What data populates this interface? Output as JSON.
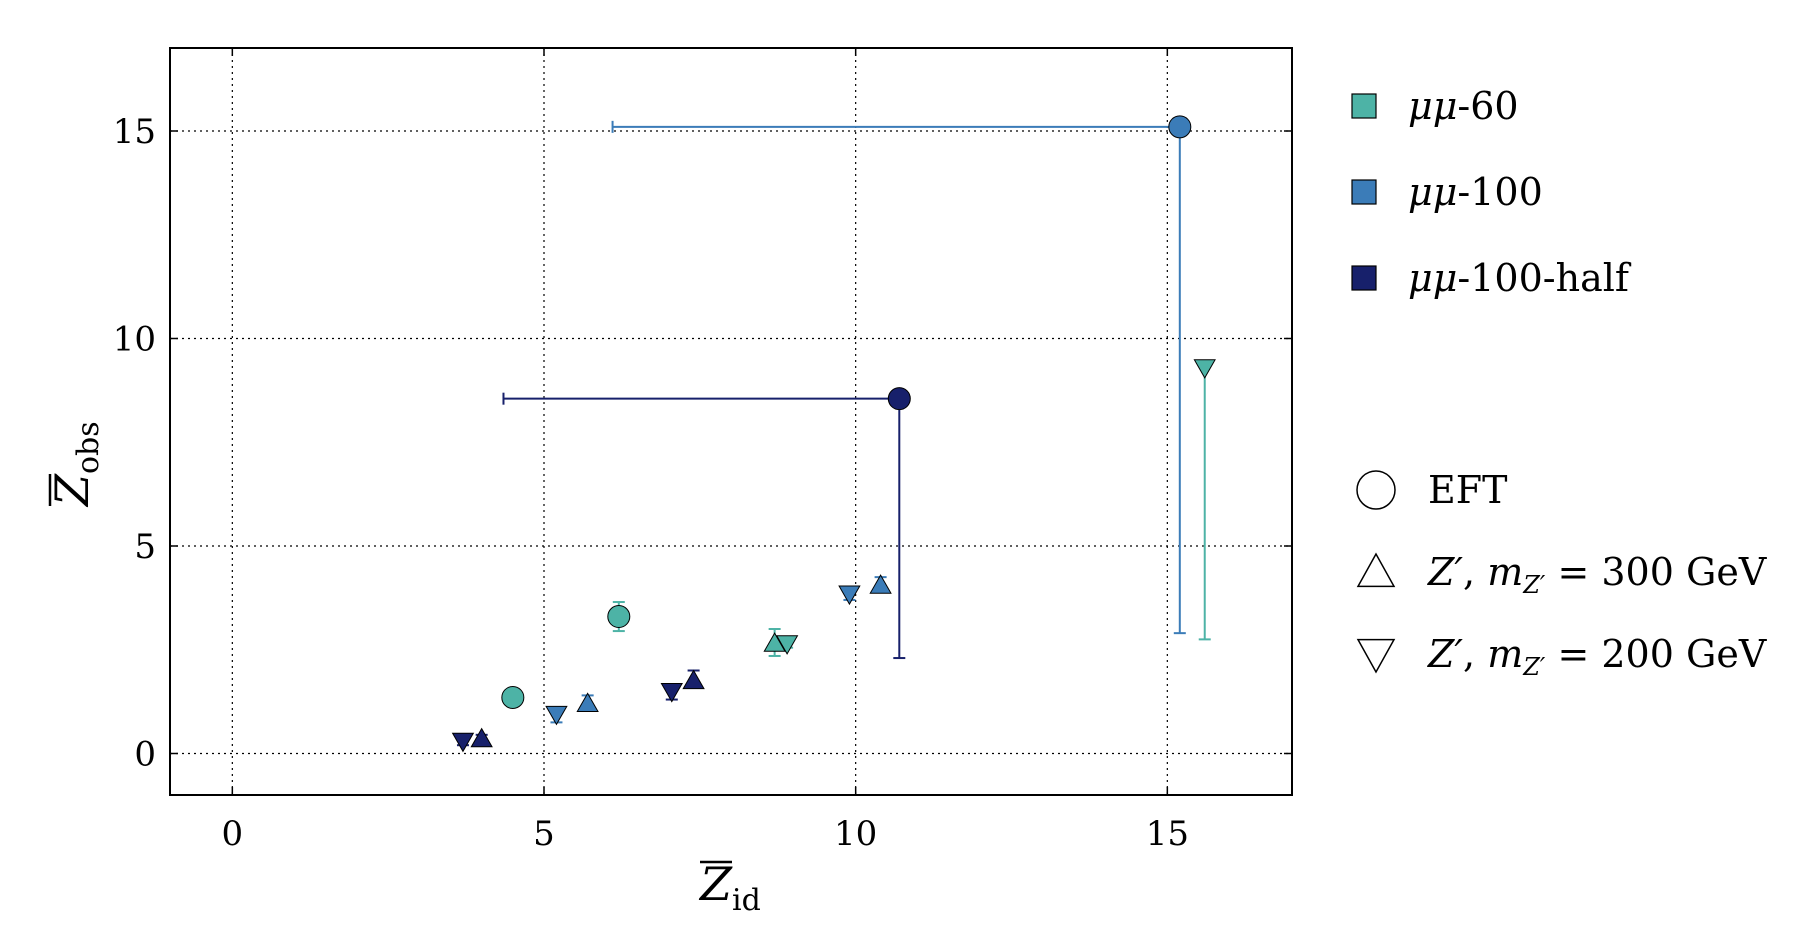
{
  "chart_data": {
    "type": "scatter",
    "xlabel": {
      "main": "Z",
      "sub": "id"
    },
    "ylabel": {
      "main": "Z",
      "sub": "obs"
    },
    "xlim": [
      -1,
      17
    ],
    "ylim": [
      -1,
      17
    ],
    "xticks": [
      0,
      5,
      10,
      15
    ],
    "yticks": [
      0,
      5,
      10,
      15
    ],
    "x_tick_labels": [
      "0",
      "5",
      "10",
      "15"
    ],
    "y_tick_labels": [
      "0",
      "5",
      "10",
      "15"
    ],
    "grid": true,
    "legend_position": "right",
    "colors": {
      "mm60": "#4db3a6",
      "mm100": "#3b7cb8",
      "mm100half": "#17206b"
    },
    "legend": {
      "series": [
        {
          "key": "mm60",
          "italic": "μμ",
          "text": "-60"
        },
        {
          "key": "mm100",
          "italic": "μμ",
          "text": "-100"
        },
        {
          "key": "mm100half",
          "italic": "μμ",
          "text": "-100-half"
        }
      ],
      "markers": [
        {
          "marker": "circle",
          "text": "EFT"
        },
        {
          "marker": "triangle-up",
          "italic": "Z′",
          "sep": ", ",
          "italic2": "m",
          "sub": "Z′",
          "eq": " = 300 GeV"
        },
        {
          "marker": "triangle-down",
          "italic": "Z′",
          "sep": ", ",
          "italic2": "m",
          "sub": "Z′",
          "eq": " = 200 GeV"
        }
      ]
    },
    "points": [
      {
        "series": "mm60",
        "marker": "circle",
        "x": 4.5,
        "y": 1.35,
        "yerr_low": 0.1,
        "yerr_high": 0.1
      },
      {
        "series": "mm60",
        "marker": "circle",
        "x": 6.2,
        "y": 3.3,
        "yerr_low": 0.35,
        "yerr_high": 0.35
      },
      {
        "series": "mm60",
        "marker": "triangle-up",
        "x": 8.7,
        "y": 2.65,
        "yerr_low": 0.3,
        "yerr_high": 0.35
      },
      {
        "series": "mm60",
        "marker": "triangle-down",
        "x": 8.9,
        "y": 2.65,
        "yerr_low": 0.1,
        "yerr_high": 0.1
      },
      {
        "series": "mm60",
        "marker": "triangle-down",
        "x": 15.6,
        "y": 9.3,
        "yerr_low": 6.55,
        "yerr_high": 0.1
      },
      {
        "series": "mm100",
        "marker": "triangle-down",
        "x": 5.2,
        "y": 0.95,
        "yerr_low": 0.2,
        "yerr_high": 0.1
      },
      {
        "series": "mm100",
        "marker": "triangle-up",
        "x": 5.7,
        "y": 1.2,
        "yerr_low": 0.1,
        "yerr_high": 0.2
      },
      {
        "series": "mm100",
        "marker": "triangle-down",
        "x": 9.9,
        "y": 3.85,
        "yerr_low": 0.15,
        "yerr_high": 0.1
      },
      {
        "series": "mm100",
        "marker": "triangle-up",
        "x": 10.4,
        "y": 4.05,
        "yerr_low": 0.1,
        "yerr_high": 0.2
      },
      {
        "series": "mm100",
        "marker": "circle",
        "x": 15.2,
        "y": 15.1,
        "yerr_low": 12.2,
        "yerr_high": 0.1,
        "xerr_low": 9.1,
        "xerr_high": 0
      },
      {
        "series": "mm100half",
        "marker": "triangle-down",
        "x": 3.7,
        "y": 0.3,
        "yerr_low": 0.1,
        "yerr_high": 0.05
      },
      {
        "series": "mm100half",
        "marker": "triangle-up",
        "x": 4.0,
        "y": 0.35,
        "yerr_low": 0.05,
        "yerr_high": 0.1
      },
      {
        "series": "mm100half",
        "marker": "triangle-down",
        "x": 7.05,
        "y": 1.5,
        "yerr_low": 0.2,
        "yerr_high": 0.1
      },
      {
        "series": "mm100half",
        "marker": "triangle-up",
        "x": 7.4,
        "y": 1.75,
        "yerr_low": 0.1,
        "yerr_high": 0.25
      },
      {
        "series": "mm100half",
        "marker": "circle",
        "x": 10.7,
        "y": 8.55,
        "yerr_low": 6.25,
        "yerr_high": 0.15,
        "xerr_low": 6.35,
        "xerr_high": 0
      }
    ]
  }
}
